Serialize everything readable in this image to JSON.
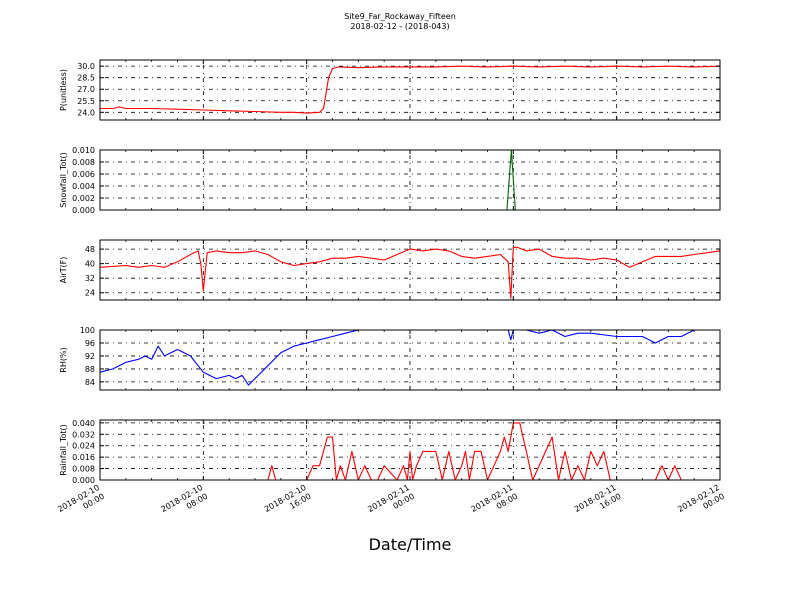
{
  "title_line1": "Site9_Far_Rockaway_Fifteen",
  "title_line2": "2018-02-12 - (2018-043)",
  "xlabel": "Date/Time",
  "x_ticks": [
    {
      "pos": 0,
      "line1": "2018-02-10",
      "line2": "00:00"
    },
    {
      "pos": 8,
      "line1": "2018-02-10",
      "line2": "08:00"
    },
    {
      "pos": 16,
      "line1": "2018-02-10",
      "line2": "16:00"
    },
    {
      "pos": 24,
      "line1": "2018-02-11",
      "line2": "00:00"
    },
    {
      "pos": 32,
      "line1": "2018-02-11",
      "line2": "08:00"
    },
    {
      "pos": 40,
      "line1": "2018-02-11",
      "line2": "16:00"
    },
    {
      "pos": 48,
      "line1": "2018-02-12",
      "line2": "00:00"
    }
  ],
  "chart_data": [
    {
      "type": "line",
      "ylabel": "P(unitless)",
      "ylim": [
        23.0,
        30.8
      ],
      "yticks": [
        24.0,
        25.5,
        27.0,
        28.5,
        30.0
      ],
      "ytick_labels": [
        "24.0",
        "25.5",
        "27.0",
        "28.5",
        "30.0"
      ],
      "grid": true,
      "series": [
        {
          "color": "#ff0000",
          "x": [
            0,
            1,
            1.5,
            2,
            4,
            6,
            8,
            10,
            12,
            14,
            15,
            16,
            17,
            17.3,
            17.7,
            18,
            18.5,
            20,
            22,
            24,
            26,
            28,
            30,
            32,
            34,
            36,
            38,
            40,
            42,
            44,
            46,
            48
          ],
          "y": [
            24.5,
            24.5,
            24.7,
            24.5,
            24.5,
            24.4,
            24.3,
            24.2,
            24.1,
            24.0,
            24.0,
            23.9,
            24.0,
            24.5,
            28.5,
            29.7,
            29.9,
            29.8,
            29.9,
            29.9,
            29.9,
            30.0,
            29.9,
            30.0,
            29.9,
            30.0,
            29.9,
            30.0,
            29.9,
            30.0,
            29.9,
            30.0
          ]
        }
      ]
    },
    {
      "type": "line",
      "ylabel": "Snowfall_Tot()",
      "ylim": [
        0.0,
        0.01
      ],
      "yticks": [
        0.0,
        0.002,
        0.004,
        0.006,
        0.008,
        0.01
      ],
      "ytick_labels": [
        "0.000",
        "0.002",
        "0.004",
        "0.006",
        "0.008",
        "0.010"
      ],
      "grid": true,
      "series": [
        {
          "color": "#006400",
          "x": [
            0,
            31.5,
            31.85,
            32.15,
            48
          ],
          "y": [
            0,
            0,
            0.01,
            0,
            0
          ]
        }
      ]
    },
    {
      "type": "line",
      "ylabel": "AirT(F)",
      "ylim": [
        20,
        53
      ],
      "yticks": [
        24,
        32,
        40,
        48
      ],
      "ytick_labels": [
        "24",
        "32",
        "40",
        "48"
      ],
      "grid": true,
      "series": [
        {
          "color": "#ff0000",
          "x": [
            0,
            2,
            3,
            4,
            5,
            6,
            7,
            7.6,
            7.8,
            8.0,
            8.3,
            9,
            10,
            11,
            12,
            13,
            14,
            15,
            16,
            17,
            18,
            19,
            20,
            21,
            22,
            23,
            24,
            25,
            26,
            27,
            28,
            29,
            30,
            31,
            31.6,
            31.8,
            32.0,
            32.3,
            33,
            34,
            35,
            36,
            37,
            38,
            39,
            40,
            41,
            42,
            43,
            44,
            45,
            46,
            47,
            48
          ],
          "y": [
            38,
            39,
            38,
            39,
            38,
            41,
            45,
            47,
            40,
            25,
            46,
            47,
            46,
            46,
            47,
            45,
            41,
            39,
            40,
            41,
            43,
            43,
            44,
            43,
            42,
            45,
            48,
            47,
            48,
            47,
            44,
            43,
            44,
            45,
            41,
            21,
            49,
            49,
            47,
            48,
            44,
            43,
            43,
            42,
            43,
            42,
            38,
            41,
            44,
            44,
            44,
            45,
            46,
            47
          ]
        }
      ]
    },
    {
      "type": "line",
      "ylabel": "RH(%)",
      "ylim": [
        81.5,
        100
      ],
      "yticks": [
        84,
        88,
        92,
        96,
        100
      ],
      "ytick_labels": [
        "84",
        "88",
        "92",
        "96",
        "100"
      ],
      "grid": true,
      "series": [
        {
          "color": "#0000ff",
          "x": [
            0,
            1,
            2,
            3,
            3.5,
            4,
            4.5,
            5,
            6,
            7,
            8,
            9,
            10,
            10.5,
            11,
            11.5,
            12,
            13,
            14,
            15,
            16,
            17,
            18,
            19,
            20,
            22,
            24,
            26,
            28,
            30,
            31,
            31.6,
            31.8,
            32.0,
            32.5,
            33,
            34,
            35,
            36,
            37,
            38,
            40,
            42,
            43,
            44,
            45,
            46,
            48
          ],
          "y": [
            87,
            88,
            90,
            91,
            92,
            91,
            95,
            92,
            94,
            92,
            87,
            85,
            86,
            85,
            86,
            83,
            85,
            89,
            93,
            95,
            96,
            97,
            98,
            99,
            100,
            100,
            100,
            100,
            100,
            100,
            100,
            100,
            97,
            100,
            100,
            100,
            99,
            100,
            98,
            99,
            99,
            98,
            98,
            96,
            98,
            98,
            100,
            100
          ]
        }
      ]
    },
    {
      "type": "line",
      "ylabel": "Rainfall_Tot()",
      "ylim": [
        0,
        0.042
      ],
      "yticks": [
        0.0,
        0.008,
        0.016,
        0.024,
        0.032,
        0.04
      ],
      "ytick_labels": [
        "0.000",
        "0.008",
        "0.016",
        "0.024",
        "0.032",
        "0.040"
      ],
      "grid": true,
      "series": [
        {
          "color": "#ff0000",
          "x": [
            0,
            13,
            13.3,
            13.6,
            16,
            16.5,
            17,
            17.3,
            17.6,
            18,
            18.3,
            18.6,
            19,
            19.5,
            20,
            20.5,
            21,
            21.5,
            22,
            23,
            23.5,
            23.8,
            24,
            24.2,
            24.5,
            25,
            26,
            26.5,
            27,
            27.5,
            28,
            28.3,
            28.6,
            29,
            29.5,
            30,
            30.5,
            31,
            31.3,
            31.6,
            32,
            32.5,
            33,
            33.5,
            34,
            34.5,
            35,
            35.5,
            36,
            36.5,
            37,
            37.5,
            38,
            38.5,
            39,
            39.5,
            40,
            41,
            42,
            43,
            43.5,
            44,
            44.5,
            45,
            46,
            48
          ],
          "y": [
            0,
            0,
            0.01,
            0,
            0,
            0.01,
            0.01,
            0.02,
            0.03,
            0.03,
            0,
            0.01,
            0,
            0.02,
            0,
            0.01,
            0,
            0,
            0.01,
            0,
            0.01,
            0,
            0.02,
            0,
            0.01,
            0.02,
            0.02,
            0,
            0.02,
            0,
            0.01,
            0.02,
            0,
            0.02,
            0.02,
            0,
            0.01,
            0.02,
            0.03,
            0.02,
            0.04,
            0.04,
            0.02,
            0,
            0.01,
            0.02,
            0.03,
            0,
            0.02,
            0,
            0.01,
            0,
            0.02,
            0.01,
            0.02,
            0,
            0,
            0,
            0,
            0,
            0.01,
            0,
            0.01,
            0,
            0,
            0
          ]
        }
      ]
    }
  ]
}
